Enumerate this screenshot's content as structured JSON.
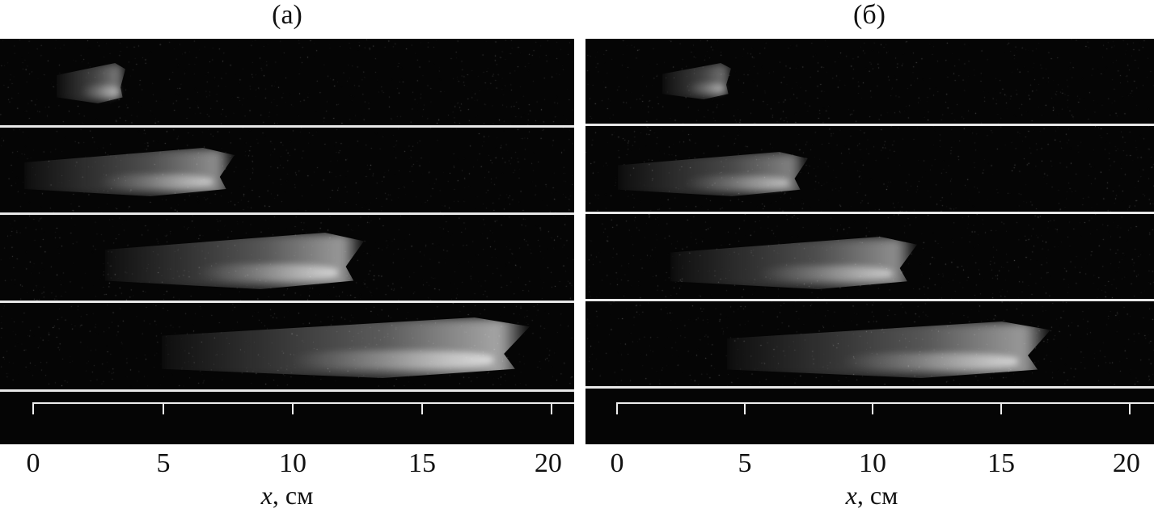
{
  "panels": [
    {
      "label": "(a)",
      "ticks": [
        "0",
        "5",
        "10",
        "15",
        "20"
      ],
      "axis_var": "x",
      "axis_unit": ", см"
    },
    {
      "label": "(б)",
      "ticks": [
        "0",
        "5",
        "10",
        "15",
        "20"
      ],
      "axis_var": "x",
      "axis_unit": ", см"
    }
  ]
}
